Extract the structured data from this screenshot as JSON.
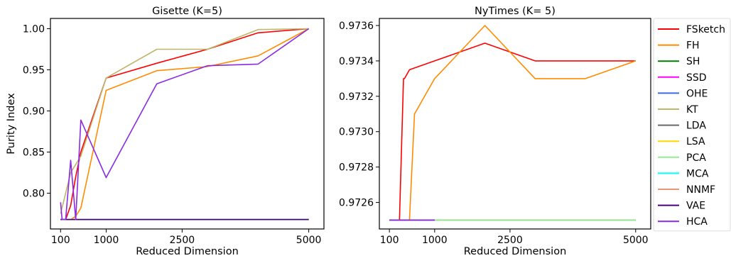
{
  "legend": {
    "entries": [
      {
        "name": "FSketch",
        "color": "#ff0000"
      },
      {
        "name": "FH",
        "color": "#ff8c00"
      },
      {
        "name": "SH",
        "color": "#008000"
      },
      {
        "name": "SSD",
        "color": "#ff00ff"
      },
      {
        "name": "OHE",
        "color": "#4169e1"
      },
      {
        "name": "KT",
        "color": "#bdb76b"
      },
      {
        "name": "LDA",
        "color": "#696969"
      },
      {
        "name": "LSA",
        "color": "#ffd700"
      },
      {
        "name": "PCA",
        "color": "#90ee90"
      },
      {
        "name": "MCA",
        "color": "#00ffff"
      },
      {
        "name": "NNMF",
        "color": "#e9967a"
      },
      {
        "name": "VAE",
        "color": "#4b0082"
      },
      {
        "name": "HCA",
        "color": "#8a2be2"
      }
    ]
  },
  "chart_data": [
    {
      "type": "line",
      "title": "Gisette (K=5)",
      "xlabel": "Reduced Dimension",
      "ylabel": "Purity Index",
      "xlim": [
        -100,
        5300
      ],
      "ylim": [
        0.7565,
        1.0125
      ],
      "xticks": [
        100,
        1000,
        2500,
        5000
      ],
      "yticks": [
        0.8,
        0.85,
        0.9,
        0.95,
        1.0
      ],
      "ytick_labels": [
        "0.80",
        "0.85",
        "0.90",
        "0.95",
        "1.00"
      ],
      "series": [
        {
          "name": "FSketch",
          "x": [
            100,
            200,
            300,
            400,
            500,
            1000,
            2000,
            3000,
            4000,
            5000
          ],
          "y": [
            0.768,
            0.768,
            0.785,
            0.82,
            0.85,
            0.94,
            0.958,
            0.975,
            0.995,
            1.0
          ]
        },
        {
          "name": "FH",
          "x": [
            100,
            200,
            300,
            400,
            500,
            1000,
            2000,
            3000,
            4000,
            5000
          ],
          "y": [
            0.768,
            0.768,
            0.768,
            0.772,
            0.782,
            0.925,
            0.949,
            0.954,
            0.967,
            1.0
          ]
        },
        {
          "name": "SH",
          "x": [
            100,
            5000
          ],
          "y": [
            0.768,
            0.768
          ]
        },
        {
          "name": "SSD",
          "x": [
            100,
            5000
          ],
          "y": [
            0.768,
            0.768
          ]
        },
        {
          "name": "OHE",
          "x": [
            100,
            5000
          ],
          "y": [
            0.768,
            0.768
          ]
        },
        {
          "name": "KT",
          "x": [
            100,
            200,
            300,
            400,
            500,
            1000,
            2000,
            3000,
            4000,
            5000
          ],
          "y": [
            0.775,
            0.8,
            0.825,
            0.835,
            0.845,
            0.94,
            0.975,
            0.975,
            0.999,
            1.0
          ]
        },
        {
          "name": "LDA",
          "x": [
            100,
            5000
          ],
          "y": [
            0.768,
            0.768
          ]
        },
        {
          "name": "LSA",
          "x": [
            100,
            5000
          ],
          "y": [
            0.768,
            0.768
          ]
        },
        {
          "name": "PCA",
          "x": [
            100,
            5000
          ],
          "y": [
            0.768,
            0.768
          ]
        },
        {
          "name": "MCA",
          "x": [
            100,
            5000
          ],
          "y": [
            0.768,
            0.768
          ]
        },
        {
          "name": "NNMF",
          "x": [
            100,
            5000
          ],
          "y": [
            0.768,
            0.768
          ]
        },
        {
          "name": "VAE",
          "x": [
            100,
            5000
          ],
          "y": [
            0.768,
            0.768
          ]
        },
        {
          "name": "HCA",
          "x": [
            100,
            130,
            200,
            300,
            400,
            500,
            1000,
            2000,
            3000,
            4000,
            5000
          ],
          "y": [
            0.789,
            0.768,
            0.768,
            0.84,
            0.768,
            0.889,
            0.819,
            0.933,
            0.955,
            0.957,
            1.0
          ]
        }
      ]
    },
    {
      "type": "line",
      "title": "NyTimes (K= 5)",
      "xlabel": "Reduced Dimension",
      "ylabel": "",
      "xlim": [
        -100,
        5300
      ],
      "ylim": [
        0.97245,
        0.97364
      ],
      "xticks": [
        100,
        1000,
        2500,
        5000
      ],
      "yticks": [
        0.9726,
        0.9728,
        0.973,
        0.9732,
        0.9734,
        0.9736
      ],
      "ytick_labels": [
        "0.9726",
        "0.9728",
        "0.9730",
        "0.9732",
        "0.9734",
        "0.9736"
      ],
      "series": [
        {
          "name": "FSketch",
          "x": [
            100,
            300,
            380,
            400,
            500,
            1000,
            2000,
            3000,
            4000,
            5000
          ],
          "y": [
            0.9725,
            0.9725,
            0.9733,
            0.9733,
            0.97335,
            0.9734,
            0.9735,
            0.9734,
            0.9734,
            0.9734
          ]
        },
        {
          "name": "FH",
          "x": [
            100,
            400,
            500,
            600,
            1000,
            2000,
            3000,
            4000,
            5000
          ],
          "y": [
            0.9725,
            0.9725,
            0.9725,
            0.9731,
            0.9733,
            0.9736,
            0.9733,
            0.9733,
            0.9734
          ]
        },
        {
          "name": "SH",
          "x": [
            100,
            5000
          ],
          "y": [
            0.9725,
            0.9725
          ]
        },
        {
          "name": "SSD",
          "x": [
            100,
            5000
          ],
          "y": [
            0.9725,
            0.9725
          ]
        },
        {
          "name": "OHE",
          "x": [
            100,
            5000
          ],
          "y": [
            0.9725,
            0.9725
          ]
        },
        {
          "name": "KT",
          "x": [
            100,
            5000
          ],
          "y": [
            0.9725,
            0.9725
          ]
        },
        {
          "name": "LDA",
          "x": [
            100,
            5000
          ],
          "y": [
            0.9725,
            0.9725
          ]
        },
        {
          "name": "LSA",
          "x": [
            100,
            5000
          ],
          "y": [
            0.9725,
            0.9725
          ]
        },
        {
          "name": "MCA",
          "x": [
            100,
            5000
          ],
          "y": [
            0.9725,
            0.9725
          ]
        },
        {
          "name": "NNMF",
          "x": [
            100,
            5000
          ],
          "y": [
            0.9725,
            0.9725
          ]
        },
        {
          "name": "PCA",
          "x": [
            1000,
            5000
          ],
          "y": [
            0.9725,
            0.9725
          ]
        },
        {
          "name": "VAE",
          "x": [
            100,
            1000
          ],
          "y": [
            0.9725,
            0.9725
          ]
        },
        {
          "name": "HCA",
          "x": [
            100,
            1000
          ],
          "y": [
            0.9725,
            0.9725
          ]
        }
      ]
    }
  ]
}
